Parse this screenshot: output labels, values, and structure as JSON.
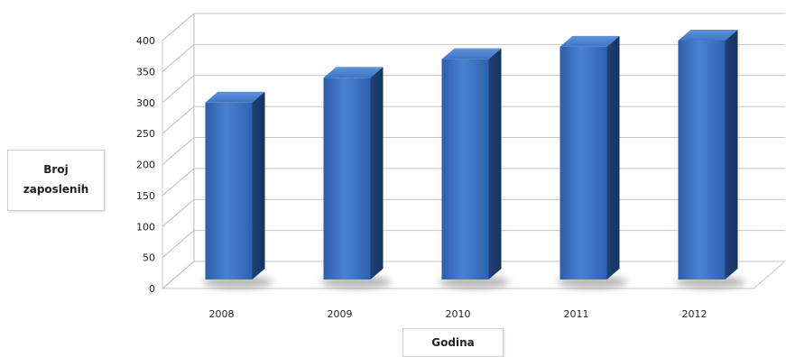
{
  "chart_data": {
    "type": "bar",
    "style": "3d-column",
    "categories": [
      "2008",
      "2009",
      "2010",
      "2011",
      "2012"
    ],
    "values": [
      300,
      340,
      370,
      390,
      400
    ],
    "title": "",
    "xlabel": "Godina",
    "ylabel_lines": [
      "Broj",
      "zaposlenih"
    ],
    "ylim": [
      0,
      400
    ],
    "yticks": [
      0,
      50,
      100,
      150,
      200,
      250,
      300,
      350,
      400
    ],
    "grid": true,
    "legend": "none",
    "bar_color": "#3a6fc0",
    "bar_side_color": "#254a86",
    "bar_top_color": "#4d83d4"
  }
}
